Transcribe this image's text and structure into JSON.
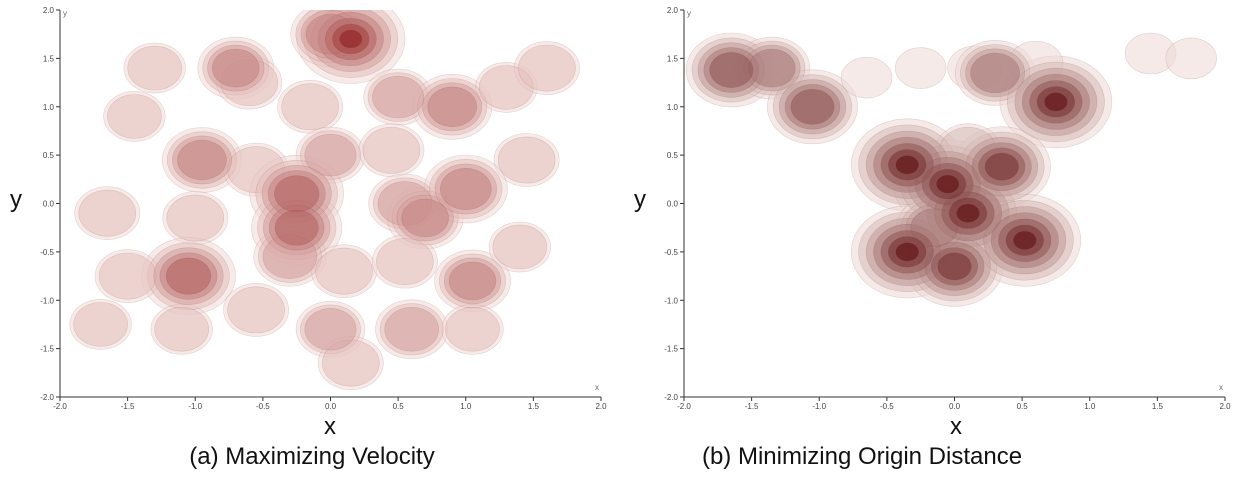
{
  "chart_data": [
    {
      "type": "heatmap",
      "subtype": "kernel-density-contours",
      "caption": "(a) Maximizing Velocity",
      "xlabel": "x",
      "ylabel": "y",
      "axis_end_label_x": "x",
      "axis_end_label_y": "y",
      "xlim": [
        -2.0,
        2.0
      ],
      "ylim": [
        -2.0,
        2.0
      ],
      "xticks": [
        "-2.0",
        "-1.5",
        "-1.0",
        "-0.5",
        "0.0",
        "0.5",
        "1.0",
        "1.5",
        "2.0"
      ],
      "yticks": [
        "2.0",
        "1.5",
        "1.0",
        "0.5",
        "0.0",
        "-0.5",
        "-1.0",
        "-1.5",
        "-2.0"
      ],
      "grid": false,
      "color_scale": [
        "#fdf2ee",
        "#8e1b1b"
      ],
      "density_peaks": [
        {
          "x": 0.15,
          "y": 1.7,
          "w": 0.95
        },
        {
          "x": 0.0,
          "y": 1.75,
          "w": 0.55
        },
        {
          "x": -0.7,
          "y": 1.4,
          "w": 0.5
        },
        {
          "x": -0.6,
          "y": 1.25,
          "w": 0.35
        },
        {
          "x": -1.3,
          "y": 1.4,
          "w": 0.3
        },
        {
          "x": -1.45,
          "y": 0.9,
          "w": 0.3
        },
        {
          "x": -0.15,
          "y": 1.0,
          "w": 0.35
        },
        {
          "x": 0.5,
          "y": 1.1,
          "w": 0.4
        },
        {
          "x": 0.9,
          "y": 1.0,
          "w": 0.55
        },
        {
          "x": 1.3,
          "y": 1.2,
          "w": 0.3
        },
        {
          "x": 1.6,
          "y": 1.4,
          "w": 0.35
        },
        {
          "x": -0.95,
          "y": 0.45,
          "w": 0.55
        },
        {
          "x": -0.55,
          "y": 0.35,
          "w": 0.35
        },
        {
          "x": 0.0,
          "y": 0.5,
          "w": 0.4
        },
        {
          "x": 0.45,
          "y": 0.55,
          "w": 0.35
        },
        {
          "x": 1.45,
          "y": 0.45,
          "w": 0.35
        },
        {
          "x": -0.25,
          "y": 0.1,
          "w": 0.75
        },
        {
          "x": -0.25,
          "y": -0.25,
          "w": 0.7
        },
        {
          "x": -0.3,
          "y": -0.55,
          "w": 0.45
        },
        {
          "x": 0.55,
          "y": 0.0,
          "w": 0.45
        },
        {
          "x": 0.7,
          "y": -0.15,
          "w": 0.5
        },
        {
          "x": 1.0,
          "y": 0.15,
          "w": 0.6
        },
        {
          "x": -1.65,
          "y": -0.1,
          "w": 0.35
        },
        {
          "x": -1.0,
          "y": -0.15,
          "w": 0.35
        },
        {
          "x": -1.05,
          "y": -0.75,
          "w": 0.75
        },
        {
          "x": -1.5,
          "y": -0.75,
          "w": 0.35
        },
        {
          "x": -1.7,
          "y": -1.25,
          "w": 0.3
        },
        {
          "x": -1.1,
          "y": -1.3,
          "w": 0.3
        },
        {
          "x": -0.55,
          "y": -1.1,
          "w": 0.35
        },
        {
          "x": 0.1,
          "y": -0.7,
          "w": 0.35
        },
        {
          "x": 0.0,
          "y": -1.3,
          "w": 0.4
        },
        {
          "x": 0.15,
          "y": -1.65,
          "w": 0.35
        },
        {
          "x": 0.6,
          "y": -1.3,
          "w": 0.45
        },
        {
          "x": 0.55,
          "y": -0.6,
          "w": 0.35
        },
        {
          "x": 1.05,
          "y": -0.8,
          "w": 0.5
        },
        {
          "x": 1.4,
          "y": -0.45,
          "w": 0.3
        },
        {
          "x": 1.05,
          "y": -1.3,
          "w": 0.3
        }
      ]
    },
    {
      "type": "heatmap",
      "subtype": "kernel-density-contours",
      "caption": "(b) Minimizing Origin Distance",
      "xlabel": "x",
      "ylabel": "y",
      "axis_end_label_x": "x",
      "axis_end_label_y": "y",
      "xlim": [
        -2.0,
        2.0
      ],
      "ylim": [
        -2.0,
        2.0
      ],
      "xticks": [
        "-2.0",
        "-1.5",
        "-1.0",
        "-0.5",
        "0.0",
        "0.5",
        "1.0",
        "1.5",
        "2.0"
      ],
      "yticks": [
        "2.0",
        "1.5",
        "1.0",
        "0.5",
        "0.0",
        "-0.5",
        "-1.0",
        "-1.5",
        "-2.0"
      ],
      "grid": false,
      "color_scale": [
        "#fdf2ee",
        "#5a0a0a"
      ],
      "density_peaks": [
        {
          "x": -1.65,
          "y": 1.38,
          "w": 0.7
        },
        {
          "x": -1.35,
          "y": 1.4,
          "w": 0.5
        },
        {
          "x": -1.05,
          "y": 1.0,
          "w": 0.7
        },
        {
          "x": -0.65,
          "y": 1.3,
          "w": 0.15
        },
        {
          "x": -0.25,
          "y": 1.4,
          "w": 0.15
        },
        {
          "x": 0.15,
          "y": 1.4,
          "w": 0.2
        },
        {
          "x": 0.3,
          "y": 1.35,
          "w": 0.55
        },
        {
          "x": 0.75,
          "y": 1.05,
          "w": 1.0
        },
        {
          "x": 0.6,
          "y": 1.45,
          "w": 0.2
        },
        {
          "x": 1.45,
          "y": 1.55,
          "w": 0.15
        },
        {
          "x": 1.75,
          "y": 1.5,
          "w": 0.15
        },
        {
          "x": -0.35,
          "y": 0.4,
          "w": 1.0
        },
        {
          "x": -0.05,
          "y": 0.2,
          "w": 0.95
        },
        {
          "x": 0.1,
          "y": -0.1,
          "w": 1.0
        },
        {
          "x": 0.35,
          "y": 0.38,
          "w": 0.8
        },
        {
          "x": 0.1,
          "y": 0.55,
          "w": 0.35
        },
        {
          "x": -0.35,
          "y": -0.5,
          "w": 1.0
        },
        {
          "x": 0.0,
          "y": -0.65,
          "w": 0.8
        },
        {
          "x": 0.52,
          "y": -0.38,
          "w": 1.0
        },
        {
          "x": -0.15,
          "y": -0.25,
          "w": 0.5
        }
      ]
    }
  ]
}
